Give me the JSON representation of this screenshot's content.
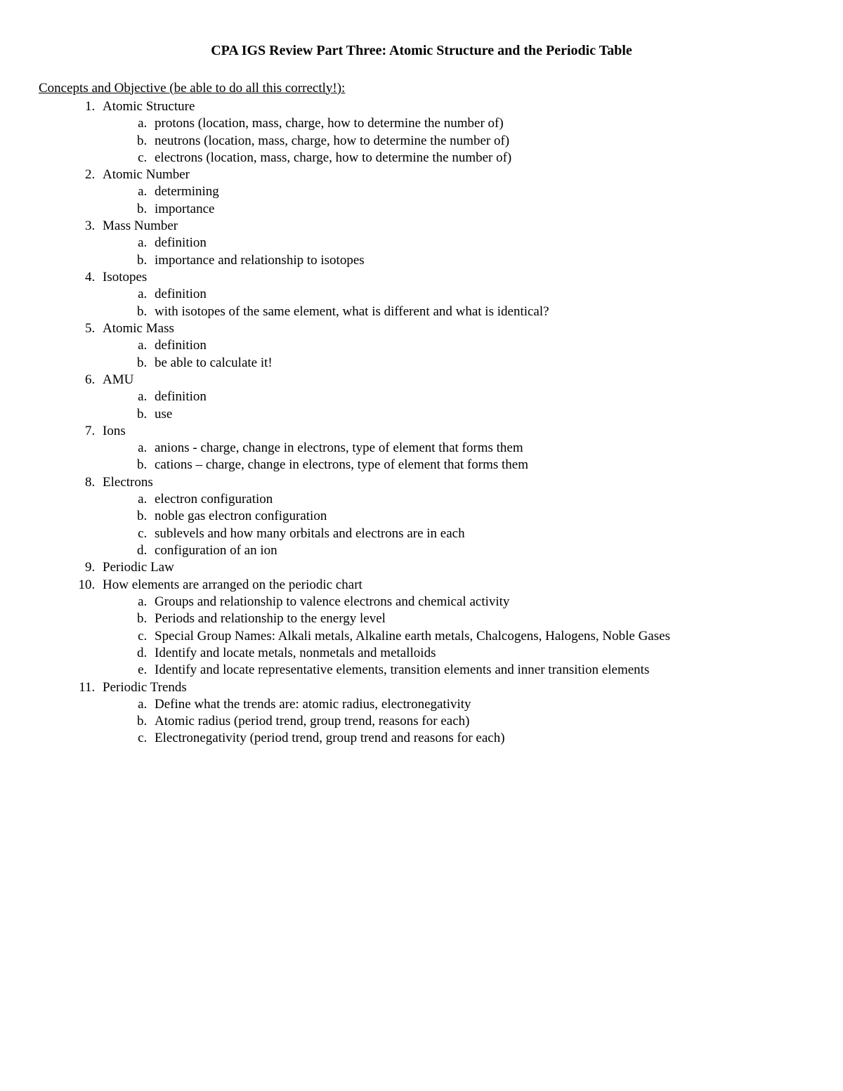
{
  "title": "CPA IGS Review Part Three:  Atomic Structure and the Periodic Table",
  "section_heading": "Concepts and Objective (be able to do all this correctly!):",
  "items": [
    {
      "label": "Atomic Structure",
      "sub": [
        "protons (location, mass, charge, how to determine the number of)",
        "neutrons (location, mass, charge, how to determine the number of)",
        "electrons (location, mass, charge, how to determine the number of)"
      ]
    },
    {
      "label": "Atomic Number",
      "sub": [
        "determining",
        "importance"
      ]
    },
    {
      "label": "Mass Number",
      "sub": [
        "definition",
        "importance and relationship to isotopes"
      ]
    },
    {
      "label": "Isotopes",
      "sub": [
        "definition",
        "with isotopes of the same element, what is different and what is identical?"
      ]
    },
    {
      "label": "Atomic Mass",
      "sub": [
        "definition",
        "be able to calculate it!"
      ]
    },
    {
      "label": "AMU",
      "sub": [
        "definition",
        "use"
      ]
    },
    {
      "label": "Ions",
      "sub": [
        "anions - charge, change in electrons, type of element that forms them",
        "cations – charge, change in electrons, type of element that forms them"
      ]
    },
    {
      "label": "Electrons",
      "sub": [
        "electron configuration",
        "noble gas electron configuration",
        "sublevels and how many orbitals and electrons are in each",
        "configuration of an ion"
      ]
    },
    {
      "label": "Periodic Law",
      "sub": []
    },
    {
      "label": "How elements are arranged on the periodic chart",
      "sub": [
        "Groups and relationship to valence electrons and chemical activity",
        "Periods and relationship to the energy level",
        "Special Group Names: Alkali metals, Alkaline earth metals, Chalcogens, Halogens, Noble Gases",
        "Identify and locate metals, nonmetals and metalloids",
        "Identify and locate representative elements, transition elements and inner transition elements"
      ]
    },
    {
      "label": "Periodic Trends",
      "sub": [
        "Define what the trends are: atomic radius, electronegativity",
        "Atomic radius (period trend, group trend, reasons for each)",
        "Electronegativity (period trend, group trend and reasons for each)"
      ]
    }
  ]
}
